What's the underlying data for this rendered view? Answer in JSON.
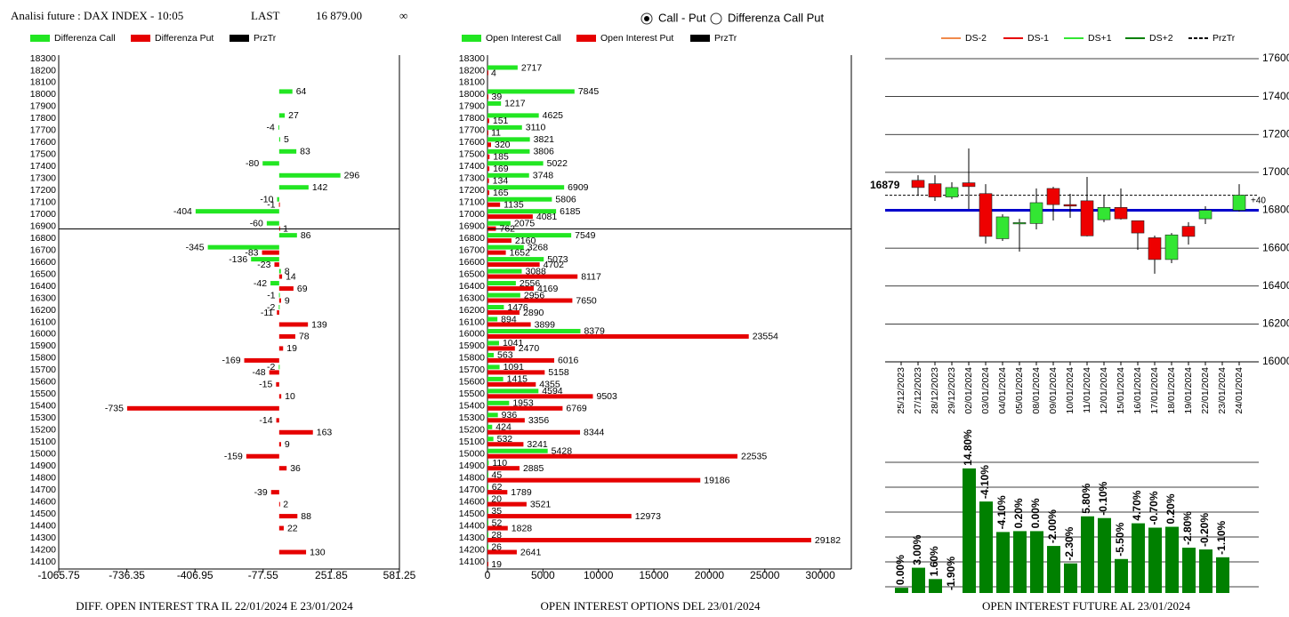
{
  "header": {
    "title": "Analisi future : DAX INDEX - 10:05",
    "last_label": "LAST",
    "last": "16 879.00",
    "symbol": "∞",
    "options": [
      "Call - Put",
      "Differenza Call Put"
    ],
    "selected": 0
  },
  "chart_data": [
    {
      "type": "hbar",
      "title": "DIFF. OPEN INTEREST TRA IL 22/01/2024 E 23/01/2024",
      "categories": [
        18300,
        18200,
        18100,
        18000,
        17900,
        17800,
        17700,
        17600,
        17500,
        17400,
        17300,
        17200,
        17100,
        17000,
        16900,
        16800,
        16700,
        16600,
        16500,
        16400,
        16300,
        16200,
        16100,
        16000,
        15900,
        15800,
        15700,
        15600,
        15500,
        15400,
        15300,
        15200,
        15100,
        15000,
        14900,
        14800,
        14700,
        14600,
        14500,
        14400,
        14300,
        14200,
        14100
      ],
      "series": [
        {
          "name": "Differenza Call",
          "color": "#22e622",
          "values": [
            null,
            null,
            null,
            64,
            null,
            27,
            -4,
            5,
            83,
            -80,
            296,
            142,
            -10,
            -404,
            -60,
            86,
            -345,
            -136,
            8,
            -42,
            -1,
            -2,
            null,
            null,
            null,
            null,
            -2,
            null,
            null,
            null,
            null,
            null,
            null,
            null,
            null,
            null,
            null,
            null,
            null,
            null,
            null,
            null,
            null
          ]
        },
        {
          "name": "Differenza Put",
          "color": "#e60000",
          "values": [
            null,
            null,
            null,
            null,
            null,
            null,
            null,
            null,
            null,
            null,
            null,
            null,
            -1,
            null,
            1,
            null,
            -83,
            -23,
            14,
            69,
            9,
            -11,
            139,
            78,
            19,
            -169,
            -48,
            -15,
            10,
            -735,
            -14,
            163,
            9,
            -159,
            36,
            null,
            -39,
            2,
            88,
            22,
            null,
            130,
            null
          ]
        }
      ],
      "price": {
        "name": "PrzTr",
        "color": "#000000",
        "value": 16879
      },
      "xlim": [
        -1065.75,
        581.25
      ],
      "xticks": [
        -1065.75,
        -736.35,
        -406.95,
        -77.55,
        251.85,
        581.25
      ],
      "ylim": [
        14100,
        18300
      ]
    },
    {
      "type": "hbar",
      "title": "OPEN INTEREST OPTIONS DEL 23/01/2024",
      "categories": [
        18300,
        18200,
        18100,
        18000,
        17900,
        17800,
        17700,
        17600,
        17500,
        17400,
        17300,
        17200,
        17100,
        17000,
        16900,
        16800,
        16700,
        16600,
        16500,
        16400,
        16300,
        16200,
        16100,
        16000,
        15900,
        15800,
        15700,
        15600,
        15500,
        15400,
        15300,
        15200,
        15100,
        15000,
        14900,
        14800,
        14700,
        14600,
        14500,
        14400,
        14300,
        14200,
        14100
      ],
      "series": [
        {
          "name": "Open Interest Call",
          "color": "#22e622",
          "values": [
            null,
            2717,
            null,
            7845,
            1217,
            4625,
            3110,
            3821,
            3806,
            5022,
            3748,
            6909,
            5806,
            6185,
            2075,
            7549,
            3268,
            5073,
            3088,
            2556,
            2956,
            1476,
            894,
            8379,
            1041,
            563,
            1091,
            1415,
            4594,
            1953,
            936,
            424,
            532,
            5428,
            110,
            45,
            62,
            20,
            35,
            52,
            28,
            26,
            null
          ]
        },
        {
          "name": "Open Interest Put",
          "color": "#e60000",
          "values": [
            null,
            4,
            null,
            39,
            null,
            151,
            11,
            320,
            185,
            169,
            134,
            165,
            1135,
            4081,
            762,
            2160,
            1652,
            4702,
            8117,
            4169,
            7650,
            2890,
            3899,
            23554,
            2470,
            6016,
            5158,
            4355,
            9503,
            6769,
            3356,
            8344,
            3241,
            22535,
            2885,
            19186,
            1789,
            3521,
            12973,
            1828,
            29182,
            2641,
            19
          ]
        }
      ],
      "price": {
        "name": "PrzTr",
        "color": "#000000",
        "value": 16879
      },
      "xlim": [
        0,
        32800
      ],
      "xticks": [
        0,
        5000,
        10000,
        15000,
        20000,
        25000,
        30000
      ],
      "ylim": [
        14100,
        18300
      ]
    },
    {
      "type": "candlestick",
      "categories": [
        "25/12/2023",
        "27/12/2023",
        "28/12/2023",
        "29/12/2023",
        "02/01/2024",
        "03/01/2024",
        "04/01/2024",
        "05/01/2024",
        "08/01/2024",
        "09/01/2024",
        "10/01/2024",
        "11/01/2024",
        "12/01/2024",
        "15/01/2024",
        "16/01/2024",
        "17/01/2024",
        "18/01/2024",
        "19/01/2024",
        "22/01/2024",
        "23/01/2024",
        "24/01/2024"
      ],
      "open": [
        null,
        16958,
        16940,
        16870,
        16945,
        16888,
        16650,
        16728,
        16730,
        16915,
        16830,
        16850,
        16750,
        16815,
        16745,
        16655,
        16540,
        16715,
        16755,
        null,
        16800
      ],
      "high": [
        null,
        16985,
        16985,
        16948,
        17126,
        16938,
        16779,
        16755,
        16915,
        16924,
        16887,
        16976,
        16877,
        16915,
        16746,
        16666,
        16680,
        16737,
        16821,
        null,
        16938
      ],
      "low": [
        null,
        16877,
        16849,
        16859,
        16807,
        16624,
        16638,
        16582,
        16699,
        16746,
        16760,
        16662,
        16737,
        16751,
        16591,
        16465,
        16521,
        16619,
        16727,
        null,
        16793
      ],
      "close": [
        null,
        16920,
        16870,
        16920,
        16925,
        16662,
        16765,
        16735,
        16840,
        16830,
        16822,
        16665,
        16815,
        16755,
        16680,
        16540,
        16670,
        16662,
        16800,
        null,
        16880
      ],
      "up_color": "#33e633",
      "down_color": "#ee0000",
      "legend": [
        {
          "name": "DS-2",
          "color": "#f08a4b"
        },
        {
          "name": "DS-1",
          "color": "#e60000"
        },
        {
          "name": "DS+1",
          "color": "#33e633"
        },
        {
          "name": "DS+2",
          "color": "#008000"
        },
        {
          "name": "PrzTr",
          "color": "#000000",
          "dashed": true
        }
      ],
      "reference_line": {
        "value": 16800,
        "color": "#0000cc"
      },
      "price": 16879,
      "price_note": "+40",
      "ylim": [
        16000,
        17600
      ],
      "yticks": [
        16000,
        16200,
        16400,
        16600,
        16800,
        17000,
        17200,
        17400,
        17600
      ],
      "grid": true
    },
    {
      "type": "bar",
      "title": "OPEN INTEREST FUTURE AL 23/01/2024",
      "values": [
        6,
        29,
        16,
        null,
        143,
        105,
        70,
        71,
        71,
        54,
        34,
        88,
        86,
        39,
        80,
        75,
        76,
        52,
        50,
        41
      ],
      "value_labels": [
        "0.00%",
        "3.00%",
        "1.60%",
        "-1.90%",
        "14.80%",
        "-4.10%",
        "-4.10%",
        "0.20%",
        "0.00%",
        "-2.00%",
        "-2.30%",
        "5.80%",
        "-0.10%",
        "-5.50%",
        "4.70%",
        "-0.70%",
        "0.20%",
        "-2.80%",
        "-0.20%",
        "-1.10%"
      ],
      "color": "#008000",
      "ylim": [
        0,
        150
      ]
    }
  ]
}
